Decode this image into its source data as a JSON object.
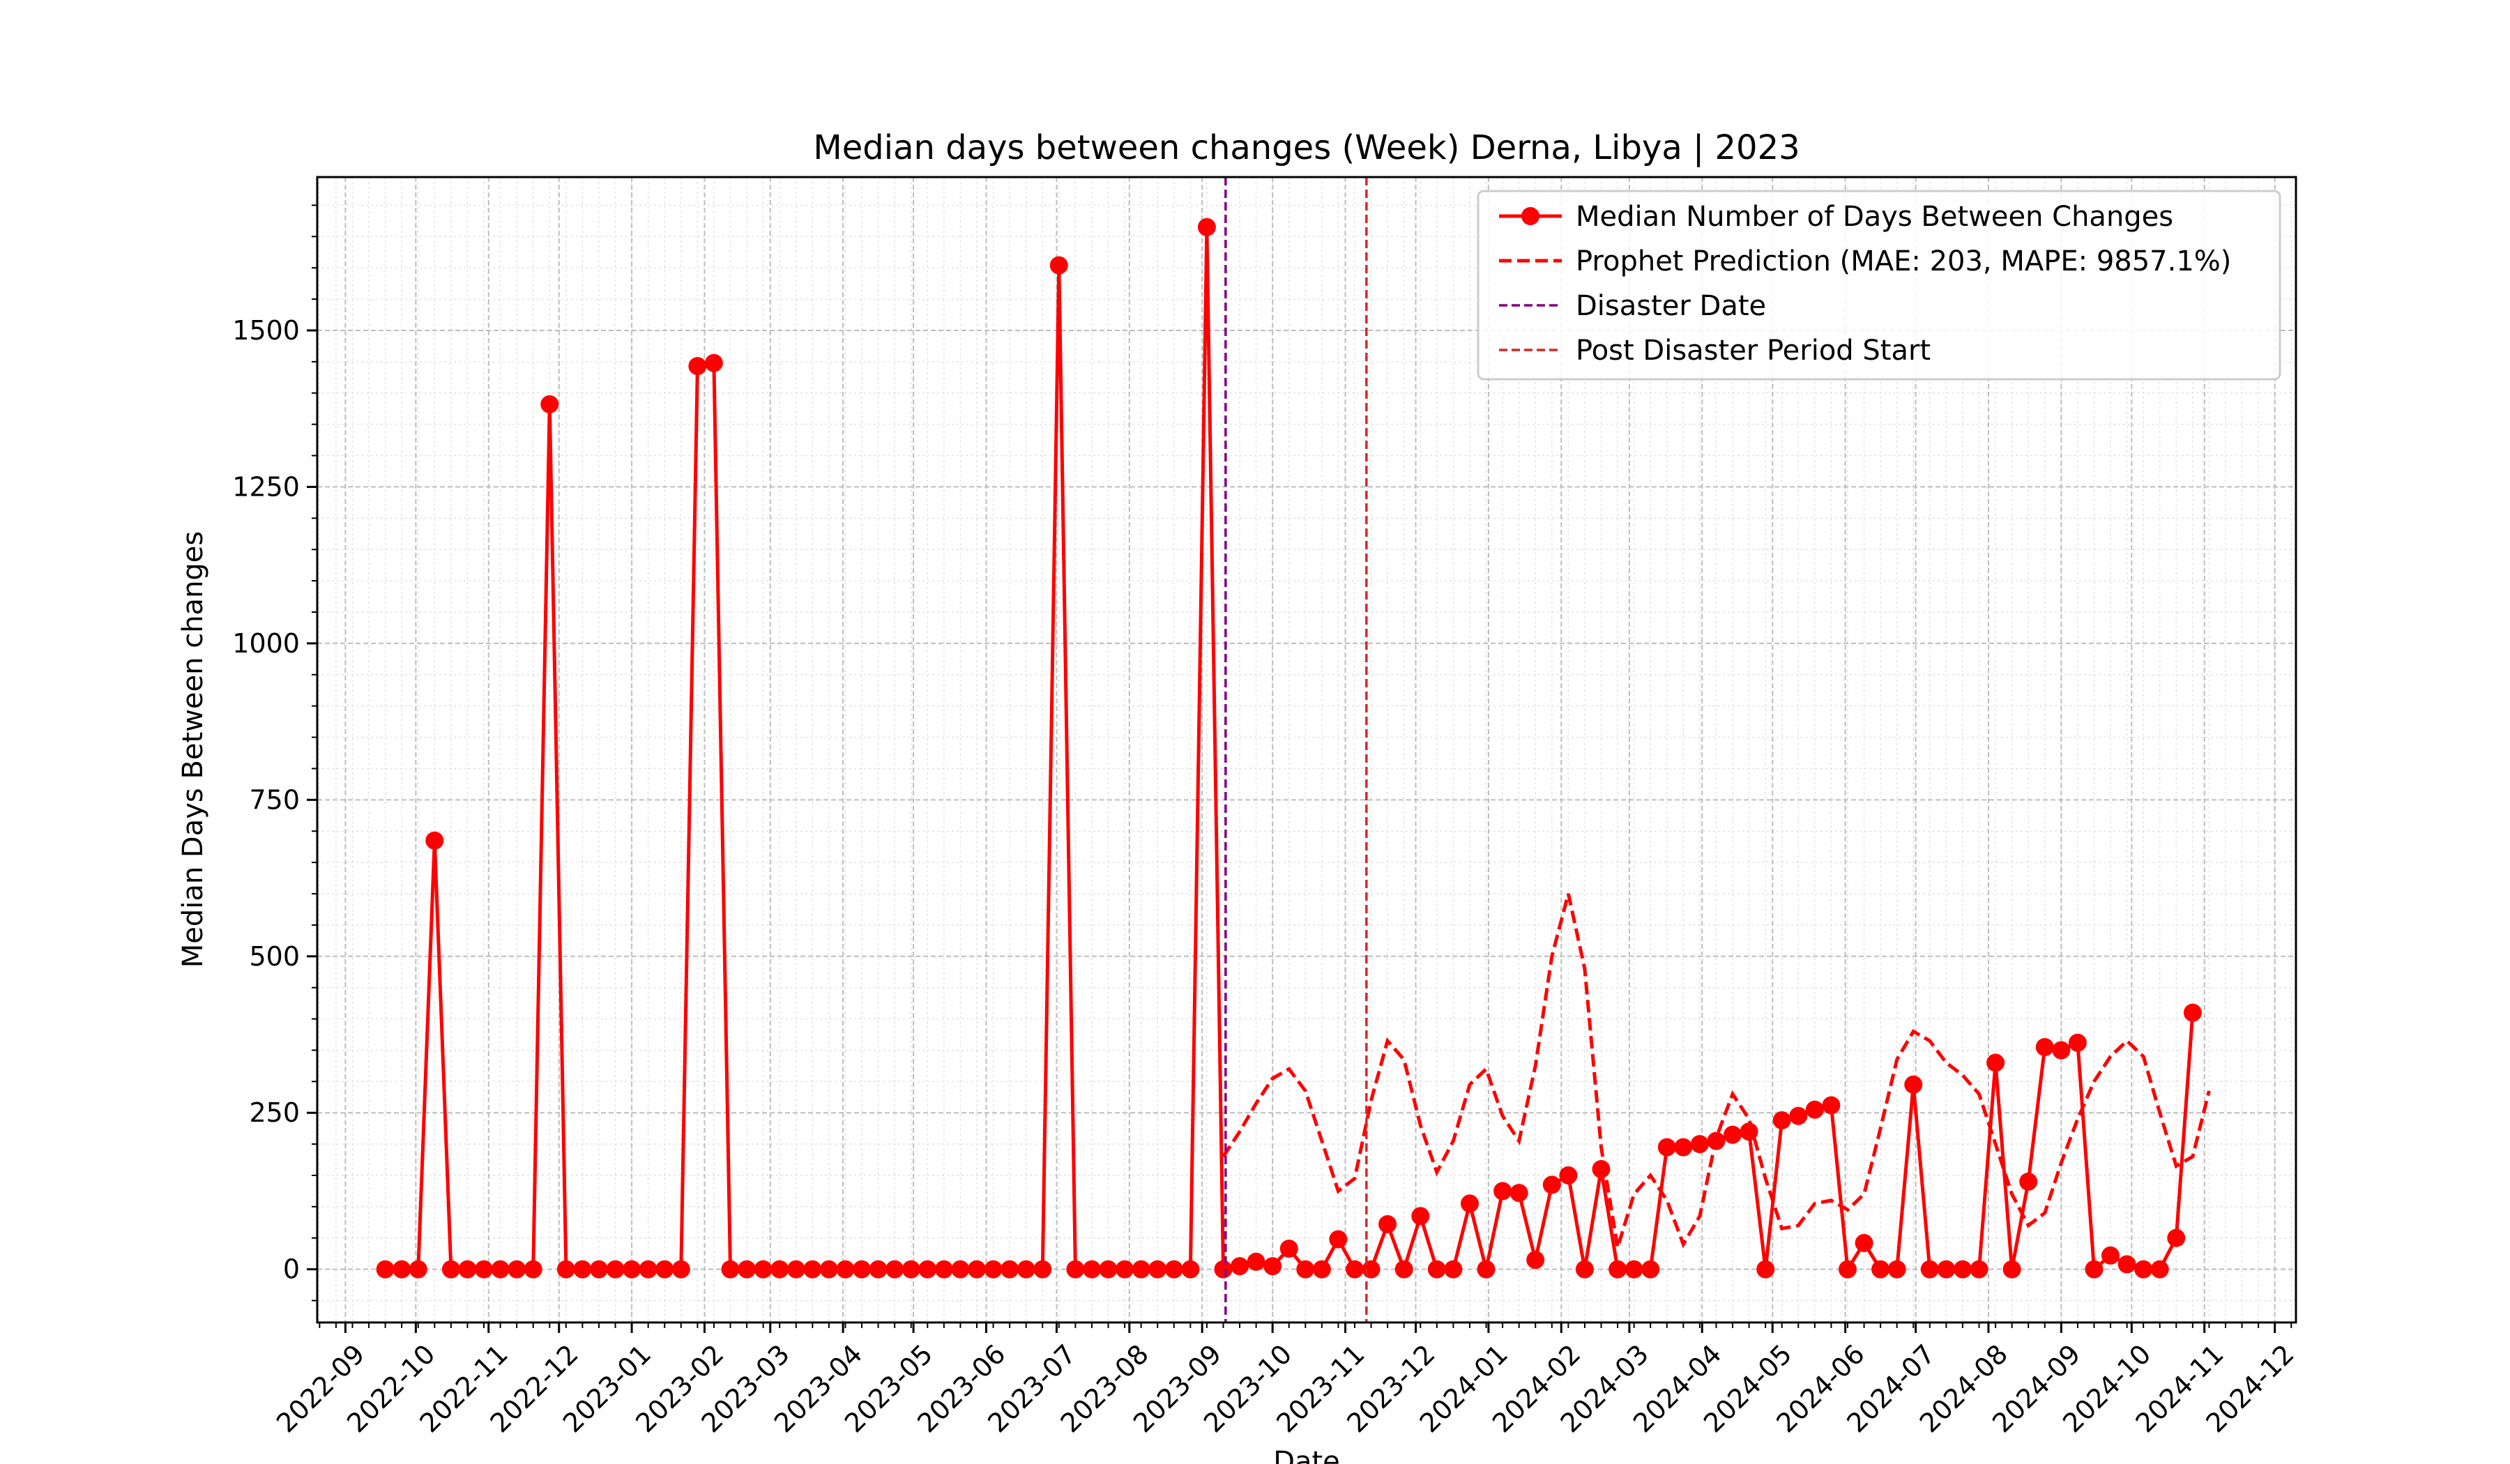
{
  "chart_data": {
    "type": "line",
    "title": "Median days between changes (Week) Derna, Libya | 2023",
    "xlabel": "Date",
    "ylabel": "Median Days Between changes",
    "xlim": [
      "2022-08-20",
      "2024-12-10"
    ],
    "ylim": [
      -85,
      1745
    ],
    "grid": true,
    "legend_position": "top-right",
    "x_ticks": [
      "2022-09",
      "2022-10",
      "2022-11",
      "2022-12",
      "2023-01",
      "2023-02",
      "2023-03",
      "2023-04",
      "2023-05",
      "2023-06",
      "2023-07",
      "2023-08",
      "2023-09",
      "2023-10",
      "2023-11",
      "2023-12",
      "2024-01",
      "2024-02",
      "2024-03",
      "2024-04",
      "2024-05",
      "2024-06",
      "2024-07",
      "2024-08",
      "2024-09",
      "2024-10",
      "2024-11",
      "2024-12"
    ],
    "y_ticks": [
      0,
      250,
      500,
      750,
      1000,
      1250,
      1500
    ],
    "series": [
      {
        "name": "Median Number of Days Between Changes",
        "style": "solid-with-markers",
        "color": "#ff0000",
        "start": "2022-09-18",
        "step_days": 7,
        "values": [
          0,
          0,
          0,
          685,
          0,
          0,
          0,
          0,
          0,
          0,
          1382,
          0,
          0,
          0,
          0,
          0,
          0,
          0,
          0,
          1443,
          1448,
          0,
          0,
          0,
          0,
          0,
          0,
          0,
          0,
          0,
          0,
          0,
          0,
          0,
          0,
          0,
          0,
          0,
          0,
          0,
          0,
          1604,
          0,
          0,
          0,
          0,
          0,
          0,
          0,
          0,
          1665,
          0,
          5,
          12,
          5,
          33,
          0,
          0,
          48,
          0,
          0,
          72,
          0,
          85,
          0,
          0,
          105,
          0,
          125,
          122,
          15,
          135,
          150,
          0,
          160,
          0,
          0,
          0,
          195,
          195,
          200,
          205,
          215,
          220,
          0,
          238,
          245,
          255,
          262,
          0,
          42,
          0,
          0,
          295,
          0,
          0,
          0,
          0,
          330,
          0,
          140,
          355,
          350,
          362,
          0,
          22,
          8,
          0,
          0,
          50,
          410
        ]
      },
      {
        "name": "Prophet Prediction (MAE: 203, MAPE: 9857.1%)",
        "style": "dashed",
        "color": "#ff0000",
        "start": "2023-09-10",
        "step_days": 7,
        "values": [
          180,
          220,
          265,
          305,
          320,
          285,
          205,
          125,
          145,
          270,
          365,
          335,
          230,
          155,
          205,
          295,
          320,
          245,
          205,
          325,
          500,
          600,
          480,
          195,
          35,
          120,
          150,
          110,
          40,
          85,
          210,
          280,
          240,
          145,
          65,
          70,
          105,
          110,
          95,
          120,
          225,
          335,
          380,
          365,
          330,
          310,
          280,
          200,
          120,
          70,
          90,
          170,
          240,
          300,
          340,
          365,
          340,
          250,
          165,
          180,
          285
        ]
      },
      {
        "name": "Disaster Date",
        "style": "dashed-vertical",
        "color": "#800080",
        "x": "2023-09-11"
      },
      {
        "name": "Post Disaster Period Start",
        "style": "dashed-vertical",
        "color": "#d62728",
        "x": "2023-11-10"
      }
    ]
  }
}
